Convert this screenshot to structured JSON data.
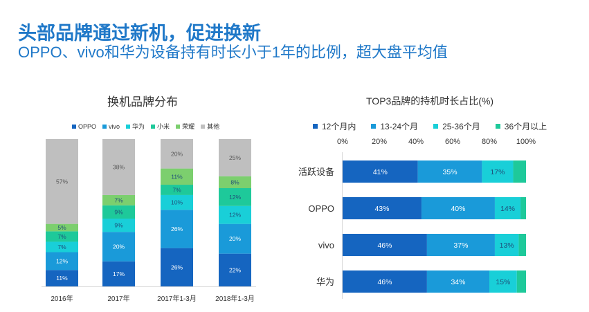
{
  "header": {
    "title": "头部品牌通过新机，促进换新",
    "subtitle": "OPPO、vivo和华为设备持有时长小于1年的比例，超大盘平均值"
  },
  "colors": {
    "left": [
      "#1565c0",
      "#1a9ad9",
      "#19cfd8",
      "#1ec99a",
      "#7ccf6e",
      "#bfbfbf"
    ],
    "right": [
      "#1565c0",
      "#1a9ad9",
      "#19cfd8",
      "#1ec99a"
    ]
  },
  "chart_data": [
    {
      "type": "bar",
      "stacked": true,
      "orientation": "vertical",
      "title": "换机品牌分布",
      "categories": [
        "2016年",
        "2017年",
        "2017年1-3月",
        "2018年1-3月"
      ],
      "series": [
        {
          "name": "OPPO",
          "values": [
            11,
            17,
            26,
            22
          ]
        },
        {
          "name": "vivo",
          "values": [
            12,
            20,
            26,
            20
          ]
        },
        {
          "name": "华为",
          "values": [
            7,
            9,
            10,
            12
          ]
        },
        {
          "name": "小米",
          "values": [
            7,
            9,
            7,
            12
          ]
        },
        {
          "name": "荣耀",
          "values": [
            5,
            7,
            11,
            8
          ]
        },
        {
          "name": "其他",
          "values": [
            57,
            38,
            20,
            25
          ]
        }
      ],
      "ylim": [
        0,
        100
      ],
      "grid": false,
      "legend": "top"
    },
    {
      "type": "bar",
      "stacked": true,
      "orientation": "horizontal",
      "title": "TOP3品牌的持机时长占比(%)",
      "categories": [
        "活跃设备",
        "OPPO",
        "vivo",
        "华为"
      ],
      "series": [
        {
          "name": "12个月内",
          "values": [
            41,
            43,
            46,
            46
          ]
        },
        {
          "name": "13-24个月",
          "values": [
            35,
            40,
            37,
            34
          ]
        },
        {
          "name": "25-36个月",
          "values": [
            17,
            14,
            13,
            15
          ]
        },
        {
          "name": "36个月以上",
          "values": [
            7,
            3,
            4,
            5
          ]
        }
      ],
      "value_labels": [
        [
          "41%",
          "35%",
          "17%",
          ""
        ],
        [
          "43%",
          "40%",
          "14%",
          ""
        ],
        [
          "46%",
          "37%",
          "13%",
          ""
        ],
        [
          "46%",
          "34%",
          "15%",
          ""
        ]
      ],
      "xlim": [
        0,
        100
      ],
      "ticks": [
        "0%",
        "20%",
        "40%",
        "60%",
        "80%",
        "100%"
      ],
      "grid": false,
      "legend": "top"
    }
  ]
}
